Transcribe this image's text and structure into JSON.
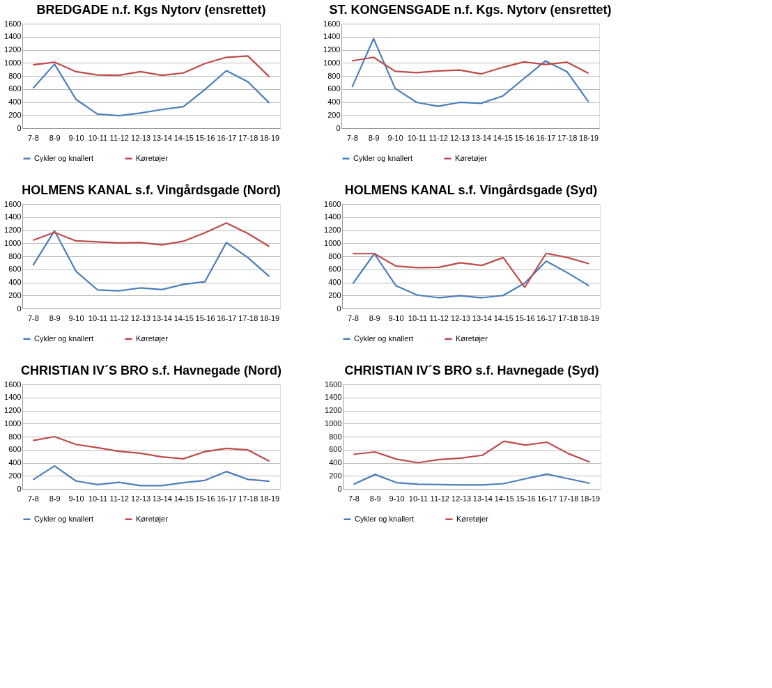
{
  "chart_data": [
    {
      "type": "line",
      "title": "BREDGADE n.f. Kgs Nytorv (ensrettet)",
      "categories": [
        "7-8",
        "8-9",
        "9-10",
        "10-11",
        "11-12",
        "12-13",
        "13-14",
        "14-15",
        "15-16",
        "16-17",
        "17-18",
        "18-19"
      ],
      "ylim": [
        0,
        1600
      ],
      "yticks": [
        0,
        200,
        400,
        600,
        800,
        1000,
        1200,
        1400,
        1600
      ],
      "grid": "y",
      "legend": "bottom",
      "series": [
        {
          "name": "Cykler og knallert",
          "color": "#4a7ebb",
          "values": [
            610,
            980,
            440,
            215,
            190,
            230,
            285,
            330,
            590,
            880,
            710,
            385
          ]
        },
        {
          "name": "Køretøjer",
          "color": "#be4b48",
          "values": [
            970,
            1010,
            865,
            815,
            810,
            865,
            810,
            845,
            990,
            1085,
            1105,
            785
          ]
        }
      ]
    },
    {
      "type": "line",
      "title": "ST. KONGENSGADE n.f. Kgs. Nytorv (ensrettet)",
      "categories": [
        "7-8",
        "8-9",
        "9-10",
        "10-11",
        "11-12",
        "12-13",
        "13-14",
        "14-15",
        "15-16",
        "16-17",
        "17-18",
        "18-19"
      ],
      "ylim": [
        0,
        1600
      ],
      "yticks": [
        0,
        200,
        400,
        600,
        800,
        1000,
        1200,
        1400,
        1600
      ],
      "grid": "y",
      "legend": "bottom",
      "series": [
        {
          "name": "Cykler og knallert",
          "color": "#4a7ebb",
          "values": [
            630,
            1370,
            610,
            395,
            335,
            395,
            380,
            490,
            760,
            1030,
            865,
            405
          ]
        },
        {
          "name": "Køretøjer",
          "color": "#be4b48",
          "values": [
            1030,
            1085,
            870,
            850,
            875,
            890,
            830,
            930,
            1015,
            975,
            1010,
            840
          ]
        }
      ]
    },
    {
      "type": "line",
      "title": "HOLMENS KANAL s.f. Vingårdsgade (Nord)",
      "categories": [
        "7-8",
        "8-9",
        "9-10",
        "10-11",
        "11-12",
        "12-13",
        "13-14",
        "14-15",
        "15-16",
        "16-17",
        "17-18",
        "18-19"
      ],
      "ylim": [
        0,
        1600
      ],
      "yticks": [
        0,
        200,
        400,
        600,
        800,
        1000,
        1200,
        1400,
        1600
      ],
      "grid": "y",
      "legend": "bottom",
      "series": [
        {
          "name": "Cykler og knallert",
          "color": "#4a7ebb",
          "values": [
            660,
            1190,
            570,
            285,
            270,
            315,
            290,
            370,
            410,
            1010,
            780,
            490
          ]
        },
        {
          "name": "Køretøjer",
          "color": "#be4b48",
          "values": [
            1045,
            1165,
            1035,
            1020,
            1005,
            1010,
            975,
            1030,
            1160,
            1310,
            1150,
            950
          ]
        }
      ]
    },
    {
      "type": "line",
      "title": "HOLMENS KANAL s.f. Vingårdsgade (Syd)",
      "categories": [
        "7-8",
        "8-9",
        "9-10",
        "10-11",
        "11-12",
        "12-13",
        "13-14",
        "14-15",
        "15-16",
        "16-17",
        "17-18",
        "18-19"
      ],
      "ylim": [
        0,
        1600
      ],
      "yticks": [
        0,
        200,
        400,
        600,
        800,
        1000,
        1200,
        1400,
        1600
      ],
      "grid": "y",
      "legend": "bottom",
      "series": [
        {
          "name": "Cykler og knallert",
          "color": "#4a7ebb",
          "values": [
            380,
            840,
            350,
            205,
            165,
            195,
            165,
            200,
            390,
            725,
            545,
            345
          ]
        },
        {
          "name": "Køretøjer",
          "color": "#be4b48",
          "values": [
            840,
            840,
            650,
            625,
            630,
            700,
            660,
            780,
            325,
            845,
            780,
            685
          ]
        }
      ]
    },
    {
      "type": "line",
      "title": "CHRISTIAN IV´S BRO s.f. Havnegade (Nord)",
      "categories": [
        "7-8",
        "8-9",
        "9-10",
        "10-11",
        "11-12",
        "12-13",
        "13-14",
        "14-15",
        "15-16",
        "16-17",
        "17-18",
        "18-19"
      ],
      "ylim": [
        0,
        1600
      ],
      "yticks": [
        0,
        200,
        400,
        600,
        800,
        1000,
        1200,
        1400,
        1600
      ],
      "grid": "y",
      "legend": "bottom",
      "series": [
        {
          "name": "Cykler og knallert",
          "color": "#4a7ebb",
          "values": [
            140,
            350,
            120,
            65,
            100,
            50,
            50,
            95,
            130,
            265,
            145,
            115
          ]
        },
        {
          "name": "Køretøjer",
          "color": "#be4b48",
          "values": [
            740,
            800,
            680,
            630,
            575,
            545,
            490,
            460,
            570,
            620,
            595,
            425
          ]
        }
      ]
    },
    {
      "type": "line",
      "title": "CHRISTIAN IV´S BRO s.f. Havnegade (Syd)",
      "categories": [
        "7-8",
        "8-9",
        "9-10",
        "10-11",
        "11-12",
        "12-13",
        "13-14",
        "14-15",
        "15-16",
        "16-17",
        "17-18",
        "18-19"
      ],
      "ylim": [
        0,
        1600
      ],
      "yticks": [
        0,
        200,
        400,
        600,
        800,
        1000,
        1200,
        1400,
        1600
      ],
      "grid": "y",
      "legend": "bottom",
      "series": [
        {
          "name": "Cykler og knallert",
          "color": "#4a7ebb",
          "values": [
            70,
            220,
            95,
            70,
            65,
            60,
            60,
            80,
            155,
            225,
            155,
            85
          ]
        },
        {
          "name": "Køretøjer",
          "color": "#be4b48",
          "values": [
            530,
            565,
            455,
            400,
            450,
            470,
            515,
            730,
            670,
            715,
            540,
            410
          ]
        }
      ]
    }
  ]
}
